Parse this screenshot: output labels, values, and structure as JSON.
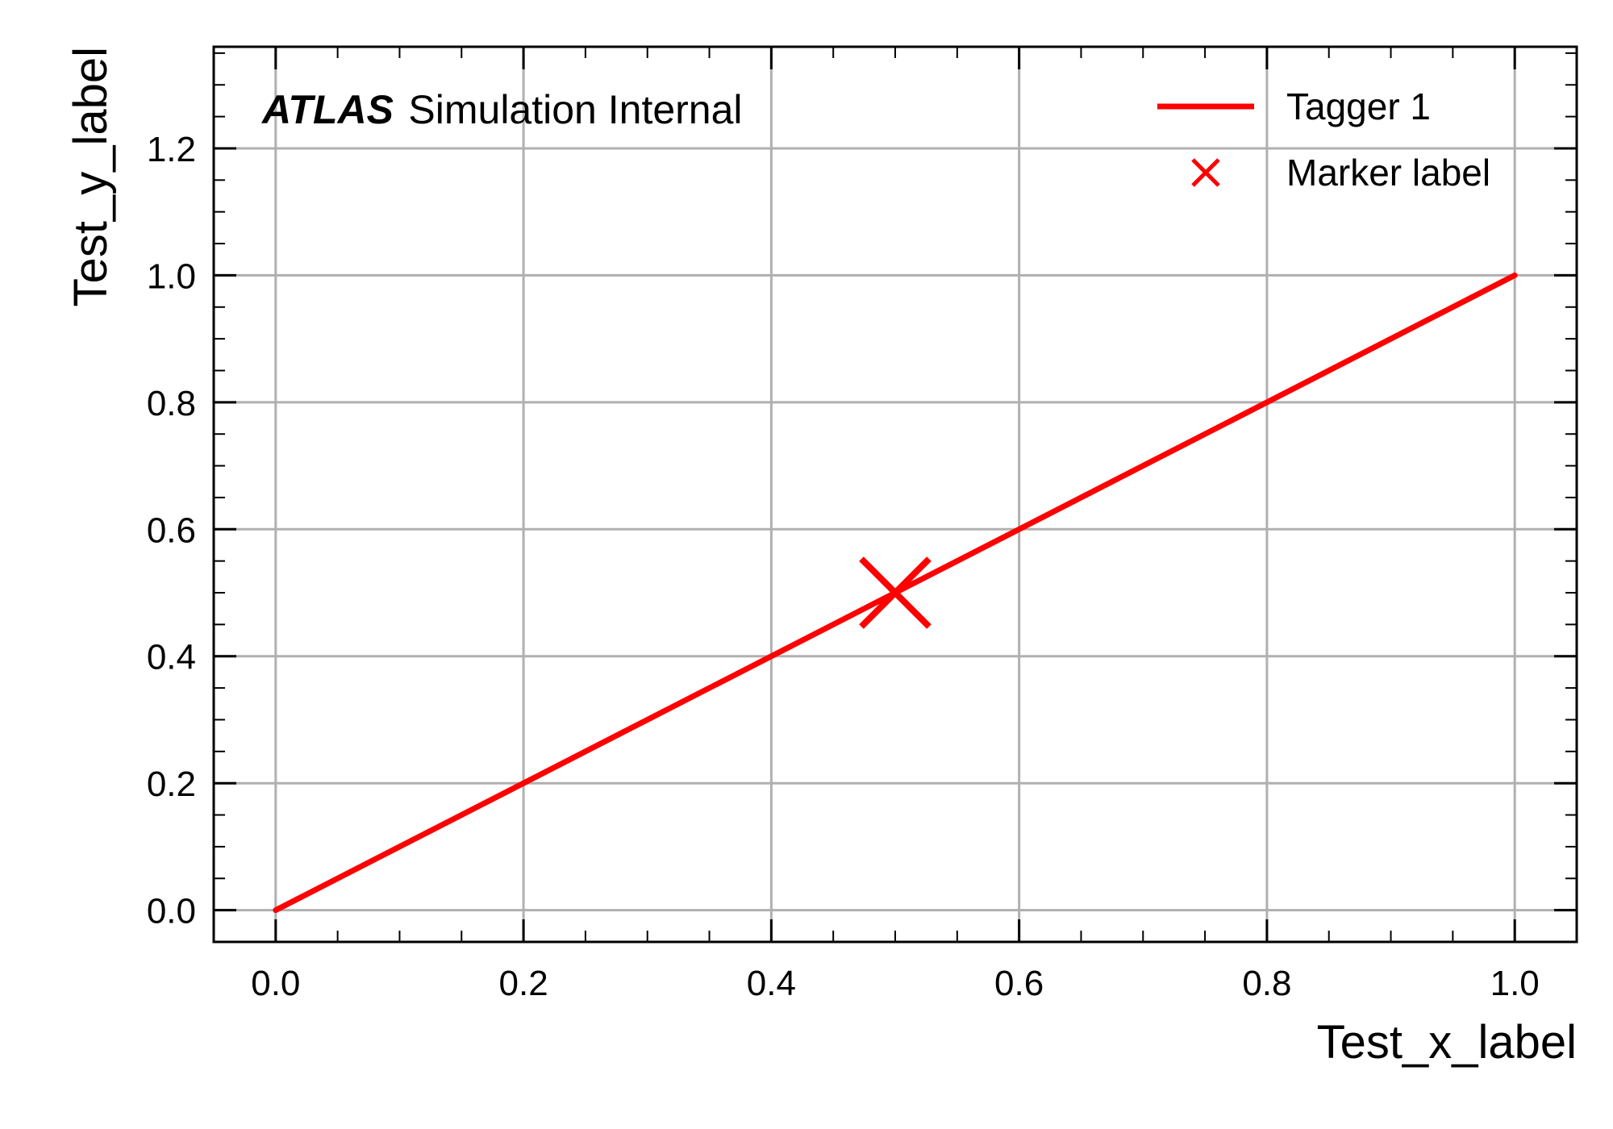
{
  "chart_data": {
    "type": "line",
    "title": "",
    "xlabel": "Test_x_label",
    "ylabel": "Test_y_label",
    "xlim": [
      -0.05,
      1.05
    ],
    "ylim": [
      -0.05,
      1.36
    ],
    "xticks": [
      0.0,
      0.2,
      0.4,
      0.6,
      0.8,
      1.0
    ],
    "xtick_labels": [
      "0.0",
      "0.2",
      "0.4",
      "0.6",
      "0.8",
      "1.0"
    ],
    "yticks": [
      0.0,
      0.2,
      0.4,
      0.6,
      0.8,
      1.0,
      1.2
    ],
    "ytick_labels": [
      "0.0",
      "0.2",
      "0.4",
      "0.6",
      "0.8",
      "1.0",
      "1.2"
    ],
    "x_minor_step": 0.05,
    "y_minor_step": 0.05,
    "grid": true,
    "series": [
      {
        "name": "Tagger 1",
        "x": [
          0.0,
          1.0
        ],
        "y": [
          0.0,
          1.0
        ],
        "color": "#ff0000"
      }
    ],
    "markers": [
      {
        "name": "Marker label",
        "x": 0.5,
        "y": 0.5,
        "color": "#ff0000",
        "symbol": "x"
      }
    ],
    "legend_position": "top-right",
    "annotation": {
      "bold": "ATLAS",
      "rest": "Simulation Internal",
      "position": "top-left"
    }
  }
}
